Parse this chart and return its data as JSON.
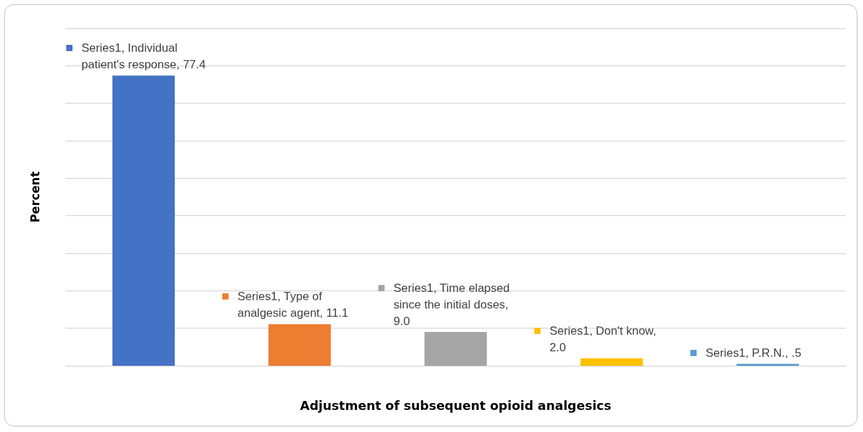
{
  "chart_data": {
    "type": "bar",
    "xlabel": "Adjustment of subsequent opioid analgesics",
    "ylabel": "Percent",
    "categories": [
      null,
      null,
      null,
      null,
      null
    ],
    "series": [
      {
        "values": [
          77.4,
          11.1,
          9.0,
          2.0,
          0.5
        ],
        "colors": [
          "#4472c4",
          "#ed7d31",
          "#a5a5a5",
          "#ffc000",
          "#5b9bd5"
        ],
        "value_labels": [
          "Series1, Individual patient's response, 77.4",
          "Series1, Type of analgesic agent, 11.1",
          "Series1, Time elapsed since the initial doses, 9.0",
          "Series1, Don't know, 2.0",
          "Series1, P.R.N., .5"
        ]
      }
    ],
    "ylim": [
      0,
      90
    ],
    "yticks": [
      {
        "value": 0,
        "label": null
      },
      {
        "value": 10,
        "label": null
      },
      {
        "value": 20,
        "label": null
      },
      {
        "value": 30,
        "label": null
      },
      {
        "value": 40,
        "label": null
      },
      {
        "value": 50,
        "label": null
      },
      {
        "value": 60,
        "label": null
      },
      {
        "value": 70,
        "label": null
      },
      {
        "value": 80,
        "label": null
      },
      {
        "value": 90,
        "label": null
      }
    ],
    "grid": "y"
  }
}
